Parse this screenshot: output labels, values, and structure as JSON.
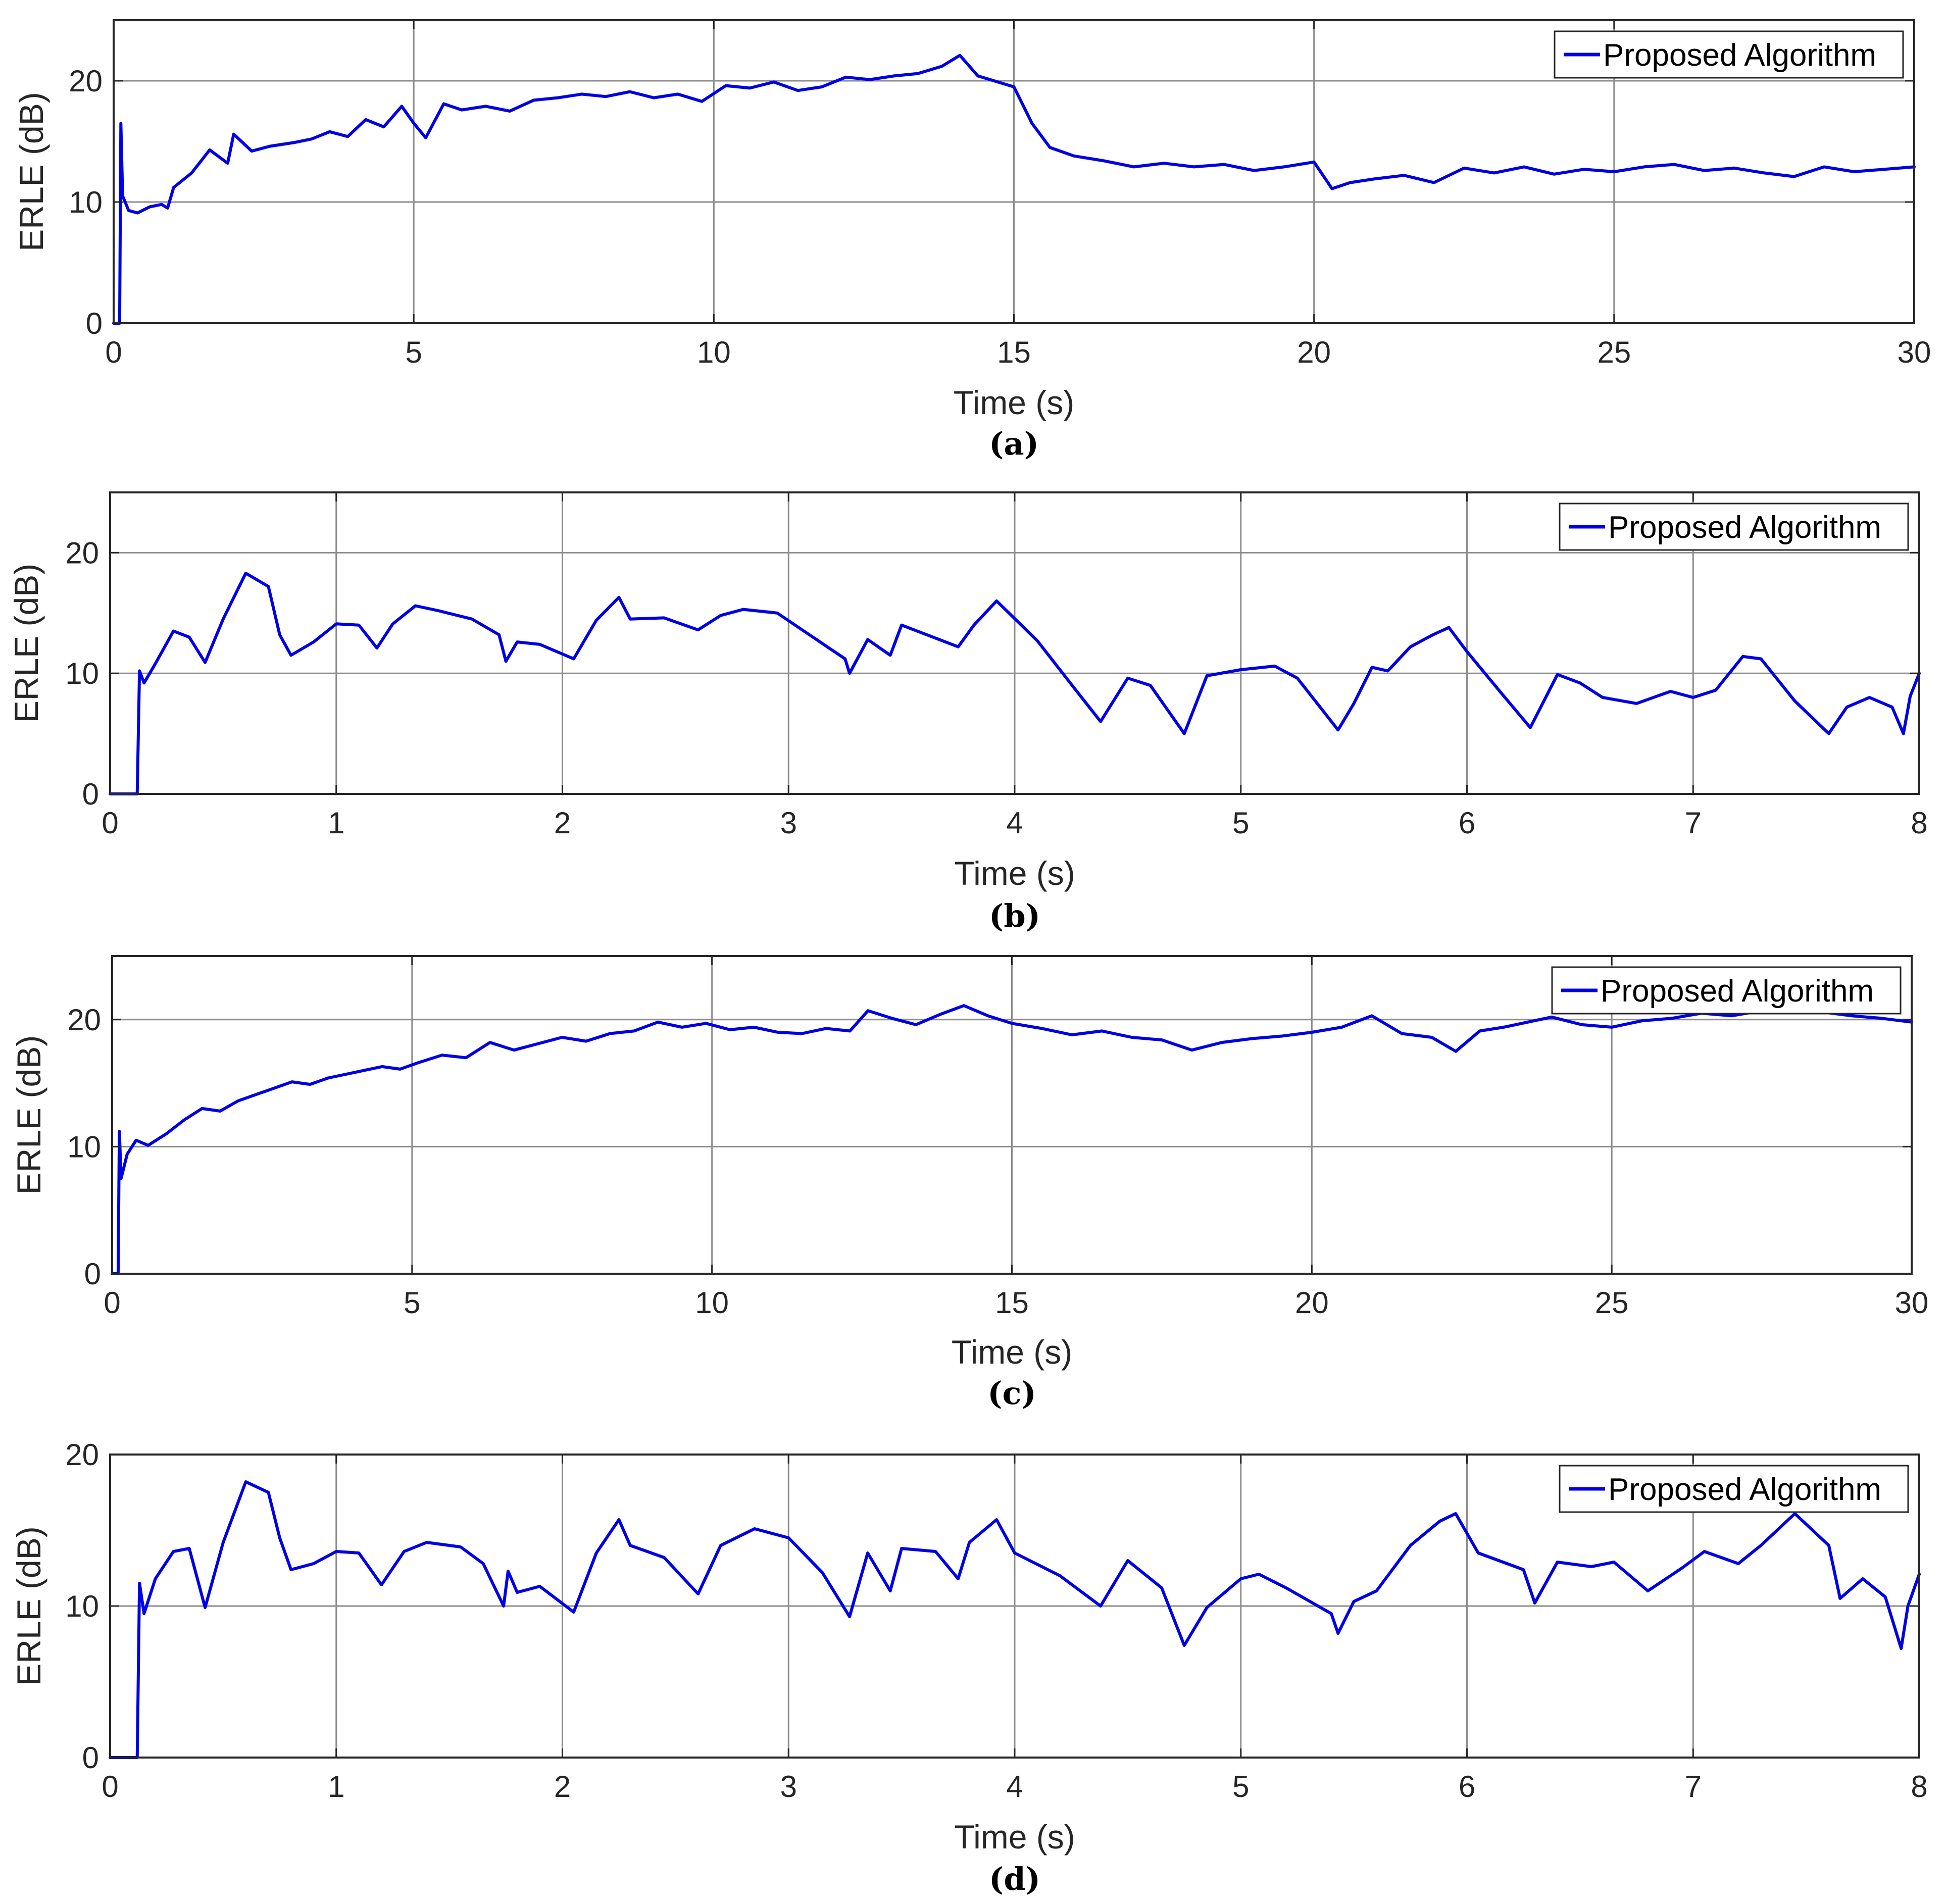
{
  "figure": {
    "colors": {
      "series": "#0000e6",
      "grid": "#8c8c8c",
      "axis": "#262626"
    }
  },
  "chart_data": [
    {
      "type": "line",
      "panel_label": "(a)",
      "xlabel": "Time (s)",
      "ylabel": "ERLE (dB)",
      "xlim": [
        0,
        30
      ],
      "ylim": [
        0,
        25
      ],
      "xticks": [
        0,
        5,
        10,
        15,
        20,
        25,
        30
      ],
      "yticks": [
        0,
        10,
        20
      ],
      "grid": true,
      "legend_position": "top-right",
      "series": [
        {
          "name": "Proposed Algorithm",
          "x": [
            0,
            0.1,
            0.12,
            0.15,
            0.25,
            0.4,
            0.6,
            0.8,
            0.9,
            1.0,
            1.3,
            1.6,
            1.9,
            2.0,
            2.3,
            2.6,
            3.0,
            3.3,
            3.6,
            3.9,
            4.2,
            4.5,
            4.8,
            5.0,
            5.2,
            5.5,
            5.8,
            6.2,
            6.6,
            7.0,
            7.4,
            7.8,
            8.2,
            8.6,
            9.0,
            9.4,
            9.8,
            10.2,
            10.6,
            11.0,
            11.4,
            11.8,
            12.2,
            12.6,
            13.0,
            13.4,
            13.8,
            14.1,
            14.4,
            14.8,
            15.0,
            15.3,
            15.6,
            16.0,
            16.5,
            17.0,
            17.5,
            18.0,
            18.5,
            19.0,
            19.5,
            20.0,
            20.3,
            20.6,
            21.0,
            21.5,
            22.0,
            22.5,
            23.0,
            23.5,
            24.0,
            24.5,
            25.0,
            25.5,
            26.0,
            26.5,
            27.0,
            27.5,
            28.0,
            28.5,
            29.0,
            29.5,
            30.0
          ],
          "y": [
            0,
            0,
            16.5,
            10.5,
            9.3,
            9.1,
            9.6,
            9.8,
            9.5,
            11.2,
            12.4,
            14.3,
            13.2,
            15.6,
            14.2,
            14.6,
            14.9,
            15.2,
            15.8,
            15.4,
            16.8,
            16.2,
            17.9,
            16.5,
            15.3,
            18.1,
            17.6,
            17.9,
            17.5,
            18.4,
            18.6,
            18.9,
            18.7,
            19.1,
            18.6,
            18.9,
            18.3,
            19.6,
            19.4,
            19.9,
            19.2,
            19.5,
            20.3,
            20.1,
            20.4,
            20.6,
            21.2,
            22.1,
            20.4,
            19.8,
            19.5,
            16.5,
            14.5,
            13.8,
            13.4,
            12.9,
            13.2,
            12.9,
            13.1,
            12.6,
            12.9,
            13.3,
            11.1,
            11.6,
            11.9,
            12.2,
            11.6,
            12.8,
            12.4,
            12.9,
            12.3,
            12.7,
            12.5,
            12.9,
            13.1,
            12.6,
            12.8,
            12.4,
            12.1,
            12.9,
            12.5,
            12.7,
            12.9
          ]
        }
      ]
    },
    {
      "type": "line",
      "panel_label": "(b)",
      "xlabel": "Time (s)",
      "ylabel": "ERLE (dB)",
      "xlim": [
        0,
        8
      ],
      "ylim": [
        0,
        25
      ],
      "xticks": [
        0,
        1,
        2,
        3,
        4,
        5,
        6,
        7,
        8
      ],
      "yticks": [
        0,
        10,
        20
      ],
      "grid": true,
      "legend_position": "top-right",
      "series": [
        {
          "name": "Proposed Algorithm",
          "x": [
            0,
            0.12,
            0.13,
            0.15,
            0.2,
            0.28,
            0.35,
            0.42,
            0.5,
            0.6,
            0.7,
            0.75,
            0.8,
            0.9,
            1.0,
            1.1,
            1.18,
            1.25,
            1.35,
            1.45,
            1.6,
            1.72,
            1.75,
            1.8,
            1.9,
            2.05,
            2.15,
            2.25,
            2.3,
            2.45,
            2.6,
            2.7,
            2.8,
            2.95,
            3.1,
            3.25,
            3.27,
            3.35,
            3.45,
            3.5,
            3.75,
            3.82,
            3.92,
            4.1,
            4.25,
            4.38,
            4.5,
            4.6,
            4.75,
            4.85,
            5.0,
            5.15,
            5.25,
            5.43,
            5.5,
            5.58,
            5.65,
            5.75,
            5.85,
            5.92,
            6.0,
            6.15,
            6.28,
            6.4,
            6.5,
            6.6,
            6.75,
            6.9,
            7.0,
            7.1,
            7.22,
            7.3,
            7.45,
            7.6,
            7.68,
            7.78,
            7.88,
            7.93,
            7.96,
            8.0
          ],
          "y": [
            0,
            0,
            10.2,
            9.2,
            10.8,
            13.5,
            13.0,
            10.9,
            14.5,
            18.3,
            17.2,
            13.2,
            11.5,
            12.6,
            14.1,
            14.0,
            12.1,
            14.1,
            15.6,
            15.2,
            14.5,
            13.2,
            11.0,
            12.6,
            12.4,
            11.2,
            14.4,
            16.3,
            14.5,
            14.6,
            13.6,
            14.8,
            15.3,
            15.0,
            13.1,
            11.2,
            10.0,
            12.8,
            11.5,
            14.0,
            12.2,
            14.0,
            16.0,
            12.7,
            9.1,
            6.0,
            9.6,
            9.0,
            5.0,
            9.8,
            10.3,
            10.6,
            9.6,
            5.3,
            7.5,
            10.5,
            10.2,
            12.2,
            13.2,
            13.8,
            11.8,
            8.4,
            5.5,
            9.9,
            9.2,
            8.0,
            7.5,
            8.5,
            8.0,
            8.6,
            11.4,
            11.2,
            7.7,
            5.0,
            7.2,
            8.0,
            7.2,
            5.0,
            8.1,
            10.0
          ]
        }
      ]
    },
    {
      "type": "line",
      "panel_label": "(c)",
      "xlabel": "Time (s)",
      "ylabel": "ERLE (dB)",
      "xlim": [
        0,
        30
      ],
      "ylim": [
        0,
        25
      ],
      "xticks": [
        0,
        5,
        10,
        15,
        20,
        25,
        30
      ],
      "yticks": [
        0,
        10,
        20
      ],
      "grid": true,
      "legend_position": "top-right",
      "series": [
        {
          "name": "Proposed Algorithm",
          "x": [
            0,
            0.1,
            0.12,
            0.15,
            0.25,
            0.4,
            0.6,
            0.9,
            1.2,
            1.5,
            1.8,
            2.1,
            2.4,
            2.7,
            3.0,
            3.3,
            3.6,
            3.9,
            4.2,
            4.5,
            4.8,
            5.1,
            5.5,
            5.9,
            6.3,
            6.7,
            7.1,
            7.5,
            7.9,
            8.3,
            8.7,
            9.1,
            9.5,
            9.9,
            10.3,
            10.7,
            11.1,
            11.5,
            11.9,
            12.3,
            12.6,
            13.0,
            13.4,
            13.8,
            14.2,
            14.6,
            15.0,
            15.5,
            16.0,
            16.5,
            17.0,
            17.5,
            18.0,
            18.5,
            19.0,
            19.5,
            20.0,
            20.5,
            21.0,
            21.5,
            22.0,
            22.4,
            22.8,
            23.2,
            23.6,
            24.0,
            24.5,
            25.0,
            25.5,
            26.0,
            26.5,
            27.0,
            27.5,
            28.0,
            28.5,
            29.0,
            29.5,
            30.0
          ],
          "y": [
            0,
            0,
            11.2,
            7.5,
            9.4,
            10.5,
            10.1,
            11.0,
            12.1,
            13.0,
            12.8,
            13.6,
            14.1,
            14.6,
            15.1,
            14.9,
            15.4,
            15.7,
            16.0,
            16.3,
            16.1,
            16.6,
            17.2,
            17.0,
            18.2,
            17.6,
            18.1,
            18.6,
            18.3,
            18.9,
            19.1,
            19.8,
            19.4,
            19.7,
            19.2,
            19.4,
            19.0,
            18.9,
            19.3,
            19.1,
            20.7,
            20.1,
            19.6,
            20.4,
            21.1,
            20.3,
            19.7,
            19.3,
            18.8,
            19.1,
            18.6,
            18.4,
            17.6,
            18.2,
            18.5,
            18.7,
            19.0,
            19.4,
            20.3,
            18.9,
            18.6,
            17.5,
            19.1,
            19.4,
            19.8,
            20.2,
            19.6,
            19.4,
            19.9,
            20.1,
            20.5,
            20.3,
            20.7,
            21.0,
            20.6,
            20.3,
            20.1,
            19.8
          ]
        }
      ]
    },
    {
      "type": "line",
      "panel_label": "(d)",
      "xlabel": "Time (s)",
      "ylabel": "ERLE (dB)",
      "xlim": [
        0,
        8
      ],
      "ylim": [
        0,
        20
      ],
      "xticks": [
        0,
        1,
        2,
        3,
        4,
        5,
        6,
        7,
        8
      ],
      "yticks": [
        0,
        10,
        20
      ],
      "grid": true,
      "legend_position": "top-right",
      "series": [
        {
          "name": "Proposed Algorithm",
          "x": [
            0,
            0.12,
            0.13,
            0.15,
            0.2,
            0.28,
            0.35,
            0.42,
            0.5,
            0.6,
            0.7,
            0.75,
            0.8,
            0.9,
            1.0,
            1.1,
            1.2,
            1.3,
            1.4,
            1.55,
            1.65,
            1.74,
            1.76,
            1.8,
            1.9,
            2.05,
            2.15,
            2.25,
            2.3,
            2.45,
            2.6,
            2.7,
            2.85,
            3.0,
            3.15,
            3.27,
            3.35,
            3.45,
            3.5,
            3.65,
            3.75,
            3.8,
            3.92,
            4.0,
            4.2,
            4.38,
            4.5,
            4.65,
            4.75,
            4.85,
            5.0,
            5.08,
            5.2,
            5.4,
            5.43,
            5.5,
            5.6,
            5.75,
            5.88,
            5.95,
            6.05,
            6.25,
            6.3,
            6.4,
            6.55,
            6.65,
            6.8,
            6.95,
            7.05,
            7.2,
            7.3,
            7.45,
            7.6,
            7.65,
            7.75,
            7.85,
            7.92,
            7.95,
            8.0
          ],
          "y": [
            0,
            0,
            11.5,
            9.5,
            11.8,
            13.6,
            13.8,
            9.9,
            14.2,
            18.2,
            17.5,
            14.5,
            12.4,
            12.8,
            13.6,
            13.5,
            11.4,
            13.6,
            14.2,
            13.9,
            12.8,
            10.0,
            12.3,
            10.9,
            11.3,
            9.6,
            13.5,
            15.7,
            14.0,
            13.2,
            10.8,
            14.0,
            15.1,
            14.5,
            12.2,
            9.3,
            13.5,
            11.0,
            13.8,
            13.6,
            11.8,
            14.2,
            15.7,
            13.5,
            12.0,
            10.0,
            13.0,
            11.2,
            7.4,
            9.9,
            11.8,
            12.1,
            11.2,
            9.5,
            8.2,
            10.3,
            11.0,
            14.0,
            15.6,
            16.1,
            13.5,
            12.4,
            10.2,
            12.9,
            12.6,
            12.9,
            11.0,
            12.5,
            13.6,
            12.8,
            14.0,
            16.1,
            14.0,
            10.5,
            11.8,
            10.6,
            7.2,
            10.0,
            12.1
          ]
        }
      ]
    }
  ]
}
